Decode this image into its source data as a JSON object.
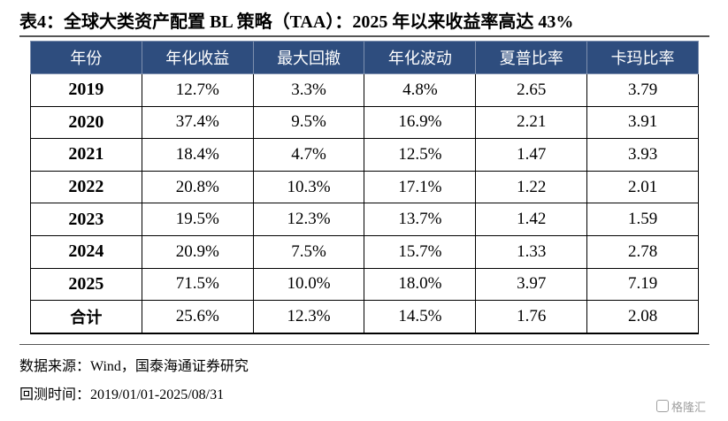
{
  "title": "表4：全球大类资产配置 BL 策略（TAA）：2025 年以来收益率高达 43%",
  "table": {
    "headers": [
      "年份",
      "年化收益",
      "最大回撤",
      "年化波动",
      "夏普比率",
      "卡玛比率"
    ],
    "rows": [
      [
        "2019",
        "12.7%",
        "3.3%",
        "4.8%",
        "2.65",
        "3.79"
      ],
      [
        "2020",
        "37.4%",
        "9.5%",
        "16.9%",
        "2.21",
        "3.91"
      ],
      [
        "2021",
        "18.4%",
        "4.7%",
        "12.5%",
        "1.47",
        "3.93"
      ],
      [
        "2022",
        "20.8%",
        "10.3%",
        "17.1%",
        "1.22",
        "2.01"
      ],
      [
        "2023",
        "19.5%",
        "12.3%",
        "13.7%",
        "1.42",
        "1.59"
      ],
      [
        "2024",
        "20.9%",
        "7.5%",
        "15.7%",
        "1.33",
        "2.78"
      ],
      [
        "2025",
        "71.5%",
        "10.0%",
        "18.0%",
        "3.97",
        "7.19"
      ],
      [
        "合计",
        "25.6%",
        "12.3%",
        "14.5%",
        "1.76",
        "2.08"
      ]
    ]
  },
  "notes": {
    "source": "数据来源：Wind，国泰海通证券研究",
    "period": "回测时间：2019/01/01-2025/08/31"
  },
  "watermark": "格隆汇",
  "colors": {
    "header_bg": "#2e4d7e",
    "header_text": "#ffffff"
  }
}
